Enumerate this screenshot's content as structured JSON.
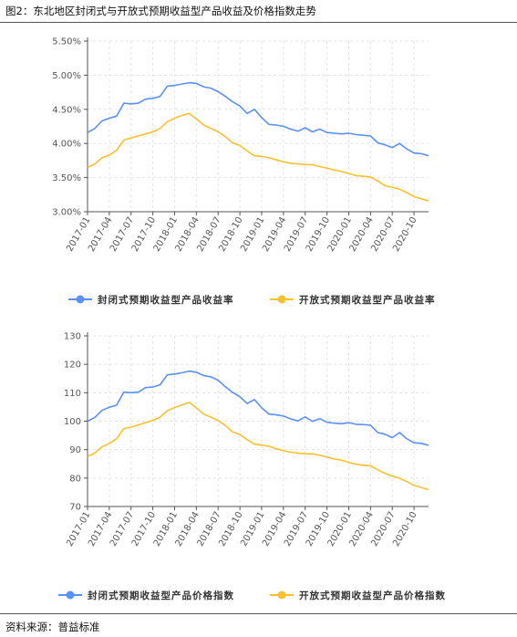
{
  "figure_title": "图2：东北地区封闭式与开放式预期收益型产品收益及价格指数走势",
  "source": "资料来源：普益标准",
  "colors": {
    "closed": "#5B8FF9",
    "open": "#FBC02D",
    "axis": "#555555",
    "grid": "#e3e3e3"
  },
  "chart_data": [
    {
      "type": "line",
      "x": [
        "2017-01",
        "2017-02",
        "2017-03",
        "2017-04",
        "2017-05",
        "2017-06",
        "2017-07",
        "2017-08",
        "2017-09",
        "2017-10",
        "2017-11",
        "2017-12",
        "2018-01",
        "2018-02",
        "2018-03",
        "2018-04",
        "2018-05",
        "2018-06",
        "2018-07",
        "2018-08",
        "2018-09",
        "2018-10",
        "2018-11",
        "2018-12",
        "2019-01",
        "2019-02",
        "2019-03",
        "2019-04",
        "2019-05",
        "2019-06",
        "2019-07",
        "2019-08",
        "2019-09",
        "2019-10",
        "2019-11",
        "2019-12",
        "2020-01",
        "2020-02",
        "2020-03",
        "2020-04",
        "2020-05",
        "2020-06",
        "2020-07",
        "2020-08",
        "2020-09",
        "2020-10",
        "2020-11",
        "2020-12"
      ],
      "xticks": [
        "2017-01",
        "2017-04",
        "2017-07",
        "2017-10",
        "2018-01",
        "2018-04",
        "2018-07",
        "2018-10",
        "2019-01",
        "2019-04",
        "2019-07",
        "2019-10",
        "2020-01",
        "2020-04",
        "2020-07",
        "2020-10"
      ],
      "yticks": [
        "3.00%",
        "3.50%",
        "4.00%",
        "4.50%",
        "5.00%",
        "5.50%"
      ],
      "ylim": [
        3.0,
        5.5
      ],
      "grid": true,
      "legend_position": "bottom",
      "series": [
        {
          "name": "封闭式预期收益型产品收益率",
          "color": "#5B8FF9",
          "values": [
            4.16,
            4.22,
            4.33,
            4.37,
            4.4,
            4.59,
            4.58,
            4.59,
            4.65,
            4.66,
            4.69,
            4.84,
            4.85,
            4.87,
            4.89,
            4.88,
            4.83,
            4.81,
            4.76,
            4.69,
            4.61,
            4.55,
            4.44,
            4.5,
            4.38,
            4.28,
            4.27,
            4.25,
            4.21,
            4.18,
            4.23,
            4.17,
            4.21,
            4.16,
            4.15,
            4.14,
            4.15,
            4.13,
            4.12,
            4.11,
            4.01,
            3.98,
            3.94,
            4.0,
            3.92,
            3.86,
            3.85,
            3.82
          ]
        },
        {
          "name": "开放式预期收益型产品收益率",
          "color": "#FBC02D",
          "values": [
            3.65,
            3.7,
            3.79,
            3.83,
            3.9,
            4.05,
            4.08,
            4.11,
            4.14,
            4.17,
            4.22,
            4.32,
            4.37,
            4.41,
            4.44,
            4.36,
            4.27,
            4.22,
            4.17,
            4.1,
            4.01,
            3.97,
            3.89,
            3.82,
            3.81,
            3.79,
            3.76,
            3.73,
            3.71,
            3.7,
            3.69,
            3.69,
            3.66,
            3.64,
            3.61,
            3.59,
            3.56,
            3.53,
            3.52,
            3.51,
            3.45,
            3.38,
            3.36,
            3.33,
            3.28,
            3.22,
            3.19,
            3.16
          ]
        }
      ]
    },
    {
      "type": "line",
      "x": [
        "2017-01",
        "2017-02",
        "2017-03",
        "2017-04",
        "2017-05",
        "2017-06",
        "2017-07",
        "2017-08",
        "2017-09",
        "2017-10",
        "2017-11",
        "2017-12",
        "2018-01",
        "2018-02",
        "2018-03",
        "2018-04",
        "2018-05",
        "2018-06",
        "2018-07",
        "2018-08",
        "2018-09",
        "2018-10",
        "2018-11",
        "2018-12",
        "2019-01",
        "2019-02",
        "2019-03",
        "2019-04",
        "2019-05",
        "2019-06",
        "2019-07",
        "2019-08",
        "2019-09",
        "2019-10",
        "2019-11",
        "2019-12",
        "2020-01",
        "2020-02",
        "2020-03",
        "2020-04",
        "2020-05",
        "2020-06",
        "2020-07",
        "2020-08",
        "2020-09",
        "2020-10",
        "2020-11",
        "2020-12"
      ],
      "xticks": [
        "2017-01",
        "2017-04",
        "2017-07",
        "2017-10",
        "2018-01",
        "2018-04",
        "2018-07",
        "2018-10",
        "2019-01",
        "2019-04",
        "2019-07",
        "2019-10",
        "2020-01",
        "2020-04",
        "2020-07",
        "2020-10"
      ],
      "yticks": [
        "70",
        "80",
        "90",
        "100",
        "110",
        "120",
        "130"
      ],
      "ylim": [
        70,
        130
      ],
      "grid": true,
      "legend_position": "bottom",
      "series": [
        {
          "name": "封闭式预期收益型产品价格指数",
          "color": "#5B8FF9",
          "values": [
            100,
            101.3,
            103.8,
            104.9,
            105.6,
            110.2,
            110.0,
            110.2,
            111.8,
            112.0,
            112.8,
            116.3,
            116.6,
            117.0,
            117.6,
            117.2,
            116.0,
            115.6,
            114.4,
            112.1,
            110.1,
            108.6,
            106.2,
            107.6,
            104.7,
            102.5,
            102.2,
            101.8,
            100.8,
            100.1,
            101.5,
            99.9,
            100.9,
            99.6,
            99.3,
            99.1,
            99.5,
            98.9,
            98.8,
            98.6,
            96.0,
            95.4,
            94.2,
            96.0,
            93.8,
            92.4,
            92.2,
            91.5
          ]
        },
        {
          "name": "开放式预期收益型产品价格指数",
          "color": "#FBC02D",
          "values": [
            87.6,
            88.8,
            91.0,
            92.2,
            93.8,
            97.4,
            97.9,
            98.7,
            99.5,
            100.3,
            101.4,
            103.7,
            104.8,
            105.7,
            106.6,
            104.7,
            102.5,
            101.4,
            100.2,
            98.5,
            96.2,
            95.3,
            93.5,
            91.9,
            91.6,
            91.2,
            90.3,
            89.6,
            89.1,
            88.8,
            88.5,
            88.5,
            88.0,
            87.4,
            86.7,
            86.3,
            85.5,
            84.9,
            84.5,
            84.3,
            82.9,
            81.6,
            80.7,
            79.9,
            78.8,
            77.4,
            76.7,
            75.9
          ]
        }
      ]
    }
  ]
}
